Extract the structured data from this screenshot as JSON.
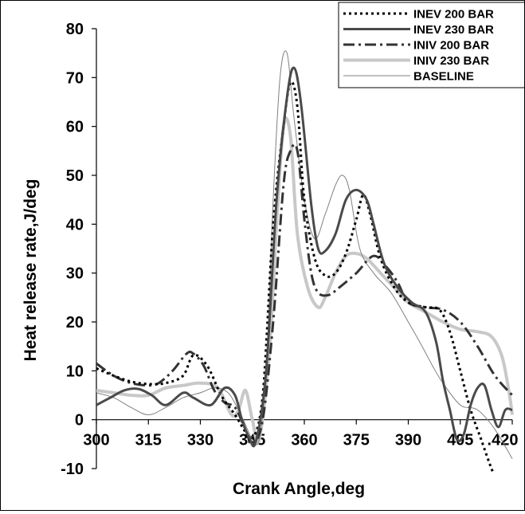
{
  "chart_data": {
    "type": "line",
    "xlabel": "Crank Angle,deg",
    "ylabel": "Heat release rate,J/deg",
    "xlim": [
      300,
      420
    ],
    "ylim": [
      -10,
      80
    ],
    "xticks": [
      "300",
      "315",
      "330",
      "345",
      "360",
      "375",
      "390",
      "405",
      ".420"
    ],
    "xtick_values": [
      300,
      315,
      330,
      345,
      360,
      375,
      390,
      405,
      420
    ],
    "yticks": [
      "-10",
      "0",
      "10",
      "20",
      "30",
      "40",
      "50",
      "60",
      "70",
      "80"
    ],
    "ytick_values": [
      -10,
      0,
      10,
      20,
      30,
      40,
      50,
      60,
      70,
      80
    ],
    "grid": false,
    "legend_position": "top-right",
    "series": [
      {
        "name": "INEV 200 BAR",
        "color": "#000000",
        "style": "dotted",
        "x": [
          300,
          305,
          310,
          315,
          320,
          325,
          328,
          332,
          336,
          340,
          343,
          345,
          348,
          351,
          354,
          356,
          358,
          360,
          363,
          366,
          369,
          372,
          375,
          377,
          379,
          382,
          386,
          390,
          395,
          399,
          402,
          405,
          408,
          411,
          414,
          416,
          418
        ],
        "y": [
          10.5,
          9,
          7.8,
          7.3,
          7.5,
          9,
          13.2,
          11,
          5,
          1,
          -2.5,
          -4,
          5,
          40,
          60,
          69,
          64,
          45,
          33,
          29.5,
          30,
          34,
          41,
          46,
          42,
          33,
          27,
          24,
          23,
          22.5,
          18,
          10,
          2,
          -4,
          -10,
          -13,
          -15
        ]
      },
      {
        "name": "INEV 230 BAR",
        "color": "#4a4a4a",
        "style": "solid",
        "x": [
          300,
          304,
          308,
          312,
          316,
          320,
          325,
          328,
          333,
          337,
          340,
          342,
          344,
          346,
          349,
          352,
          355,
          357,
          359,
          362,
          364,
          366,
          369,
          372,
          375,
          378,
          380,
          383,
          387,
          391,
          395,
          398,
          400,
          402,
          404,
          406,
          408,
          410,
          412,
          414,
          416,
          418,
          420
        ],
        "y": [
          3,
          4.5,
          6,
          6.3,
          5,
          3,
          5.5,
          4.5,
          3,
          6.5,
          5,
          0,
          -3.5,
          -4.5,
          10,
          45,
          66,
          72,
          65,
          44,
          35,
          34.5,
          38,
          45,
          47,
          45,
          40,
          32,
          27,
          24,
          22,
          16,
          8,
          2,
          -4,
          -3,
          3,
          6.5,
          7,
          2,
          -1.5,
          2,
          2
        ]
      },
      {
        "name": "INIV 200 BAR",
        "color": "#333333",
        "style": "dashdot",
        "x": [
          300,
          305,
          310,
          315,
          318,
          322,
          326,
          328,
          331,
          334,
          337,
          340,
          343,
          345,
          348,
          351,
          354,
          356,
          358,
          360,
          362,
          364,
          367,
          370,
          375,
          380,
          384,
          387,
          390,
          395,
          400,
          405,
          410,
          415,
          420
        ],
        "y": [
          11.5,
          9,
          7.5,
          7,
          7.5,
          10,
          13.5,
          13.5,
          11,
          6,
          3.5,
          2.5,
          -2,
          -5,
          0,
          20,
          48,
          55,
          55,
          41,
          30,
          26,
          25.5,
          27,
          30,
          33.5,
          31,
          28,
          24,
          23,
          22.5,
          20,
          15,
          9,
          5
        ]
      },
      {
        "name": "INIV 230 BAR",
        "color": "#c8c8c8",
        "style": "solid",
        "x": [
          300,
          305,
          310,
          315,
          320,
          325,
          330,
          335,
          339,
          341,
          343,
          345,
          347,
          350,
          352,
          354,
          356,
          358,
          361,
          364,
          366,
          369,
          372,
          375,
          378,
          382,
          386,
          390,
          395,
          400,
          405,
          410,
          414,
          417,
          419,
          420
        ],
        "y": [
          6,
          5.5,
          5,
          5,
          6.5,
          7,
          7.5,
          6.5,
          1,
          2,
          6,
          0,
          -4,
          15,
          40,
          60,
          58,
          38,
          27,
          23,
          25,
          30,
          33.5,
          34,
          33,
          30,
          27,
          24,
          22,
          20,
          18.5,
          18,
          17,
          13,
          6,
          1
        ]
      },
      {
        "name": "BASELINE",
        "color": "#808080",
        "style": "thin",
        "x": [
          300,
          305,
          310,
          315,
          320,
          325,
          330,
          334,
          338,
          341,
          343,
          345,
          347,
          349,
          351,
          353,
          355,
          357,
          360,
          363,
          366,
          369,
          371,
          373,
          376,
          380,
          385,
          390,
          394,
          397,
          400,
          405,
          410,
          415,
          420
        ],
        "y": [
          5.5,
          4.5,
          2.5,
          1,
          2.5,
          4.5,
          5.5,
          6.5,
          5.5,
          2,
          -1,
          -4,
          -4,
          10,
          45,
          70,
          75,
          62,
          45,
          37,
          42,
          48,
          50,
          47,
          35,
          30,
          26,
          20,
          15,
          11,
          7.5,
          3,
          2,
          -2,
          -8
        ]
      }
    ]
  }
}
